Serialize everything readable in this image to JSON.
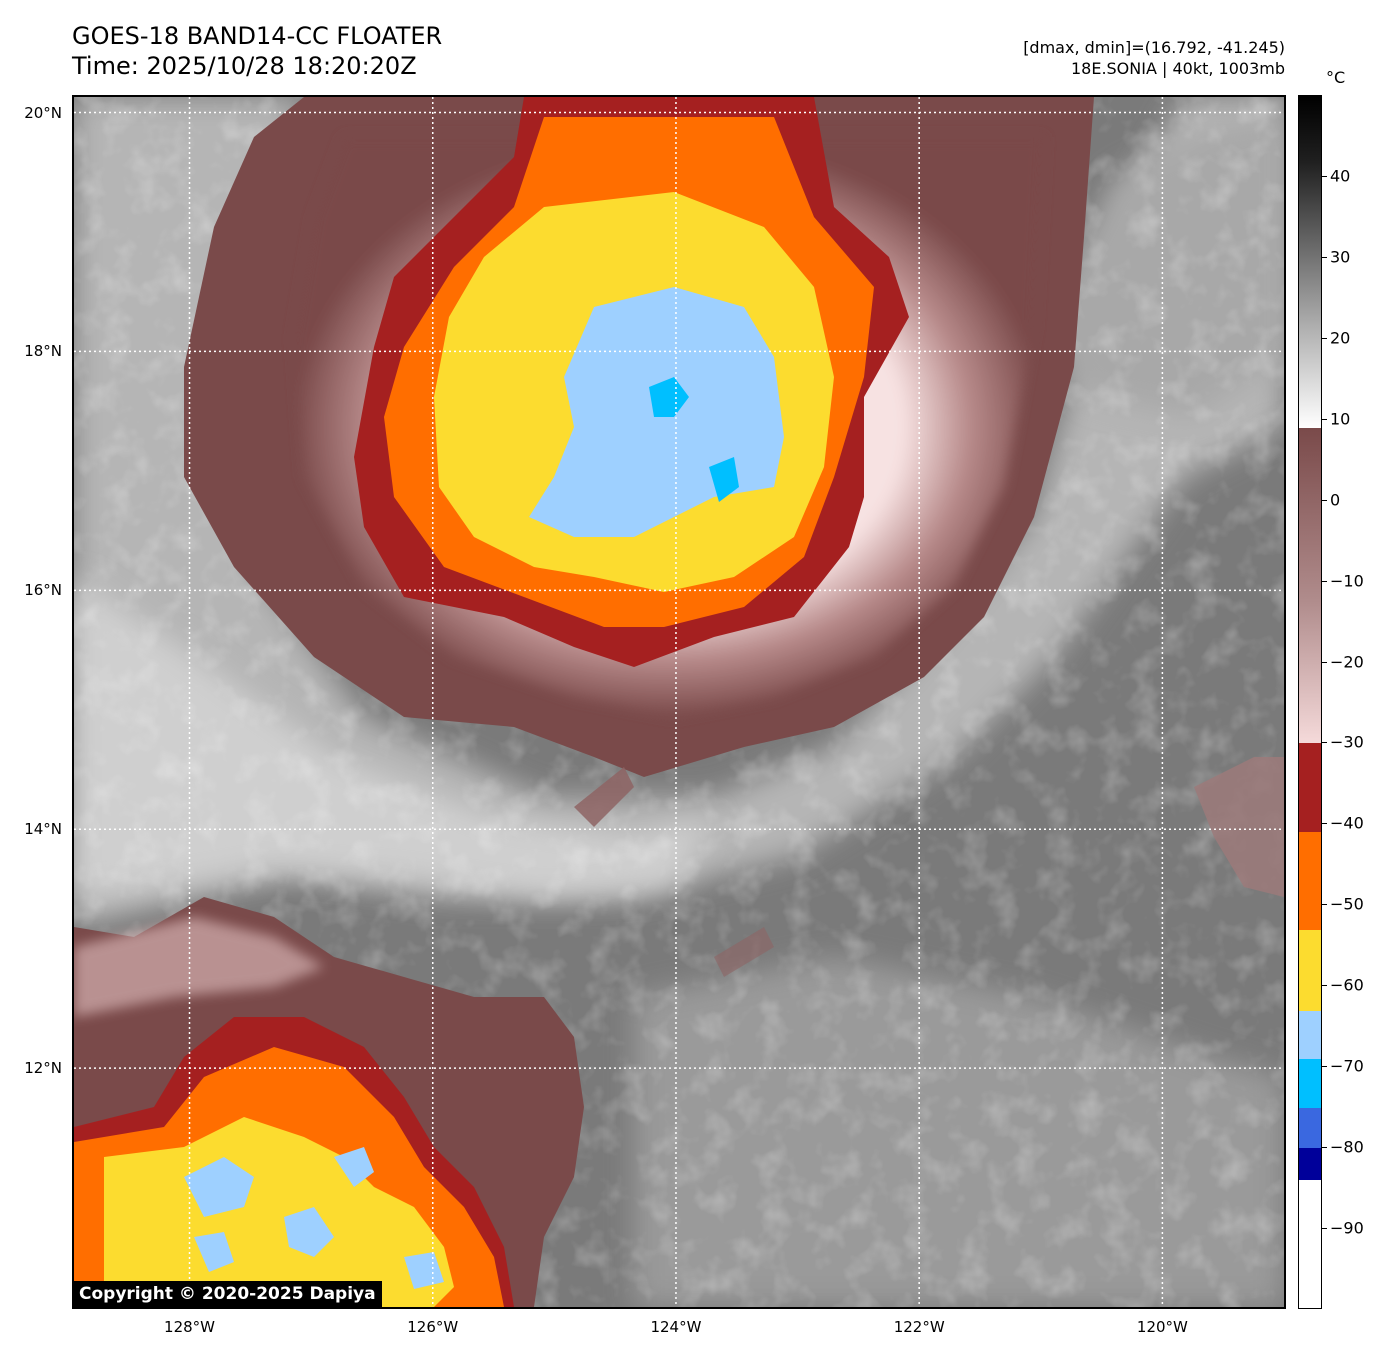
{
  "header": {
    "title_line1": "GOES-18 BAND14-CC FLOATER",
    "title_line2": "Time: 2025/10/28 18:20:20Z",
    "info_line1": "[dmax, dmin]=(16.792, -41.245)",
    "info_line2": "18E.SONIA | 40kt, 1003mb"
  },
  "map": {
    "lat_labels": [
      "20°N",
      "18°N",
      "16°N",
      "14°N",
      "12°N"
    ],
    "lat_values": [
      20,
      18,
      16,
      14,
      12
    ],
    "lon_labels": [
      "128°W",
      "126°W",
      "124°W",
      "122°W",
      "120°W"
    ],
    "lon_values": [
      -128,
      -126,
      -124,
      -122,
      -120
    ],
    "extent": {
      "lon_min": -128.95,
      "lon_max": -119.0,
      "lat_min": 10.0,
      "lat_max": 20.13
    },
    "copyright": "Copyright © 2020-2025 Dapiya"
  },
  "colorbar": {
    "unit": "°C",
    "tick_labels": [
      "40",
      "30",
      "20",
      "10",
      "0",
      "−10",
      "−20",
      "−30",
      "−40",
      "−50",
      "−60",
      "−70",
      "−80",
      "−90"
    ],
    "tick_values": [
      40,
      30,
      20,
      10,
      0,
      -10,
      -20,
      -30,
      -40,
      -50,
      -60,
      -70,
      -80,
      -90
    ],
    "range": [
      -100,
      50
    ],
    "colors": {
      "clear_gray": "#7a7a7a",
      "warm_cloud_light": "#c8c8c8",
      "cold_pink": "#f5dada",
      "cold_brown": "#7a4a4a",
      "dark_red": "#a52020",
      "orange": "#ff6e00",
      "yellow": "#fcdc2f",
      "light_blue": "#9ed0ff",
      "cyan": "#00bfff",
      "royal_blue": "#3a68e0",
      "navy": "#00009a"
    }
  }
}
